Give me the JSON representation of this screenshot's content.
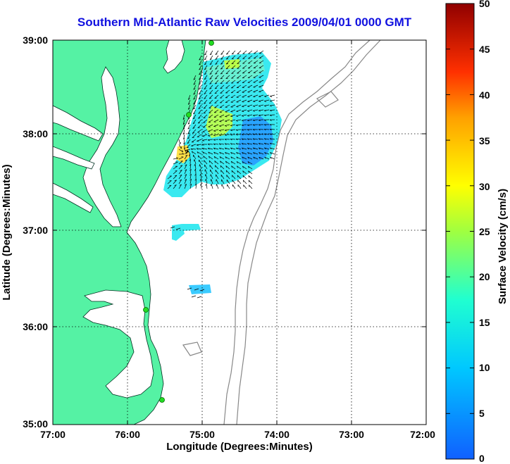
{
  "title": "Southern Mid-Atlantic Raw Velocities 2009/04/01 0000 GMT",
  "map": {
    "lon_ticks": [
      "77:00",
      "76:00",
      "75:00",
      "74:00",
      "73:00",
      "72:00"
    ],
    "lat_ticks": [
      "39:00",
      "38:00",
      "37:00",
      "36:00",
      "35:00"
    ],
    "lon_range": [
      -77,
      -72
    ],
    "lat_range": [
      35,
      39
    ],
    "xlabel": "Longitude (Degrees:Minutes)",
    "ylabel": "Latitude (Degrees:Minutes)",
    "land_color": "#55f2a4",
    "grid": "dotted"
  },
  "colorbar": {
    "label": "Surface Velocity (cm/s)",
    "ticks": [
      "50",
      "45",
      "40",
      "35",
      "30",
      "25",
      "20",
      "15",
      "10",
      "5",
      "0"
    ],
    "range": [
      0,
      50
    ],
    "colormap": "jet"
  }
}
